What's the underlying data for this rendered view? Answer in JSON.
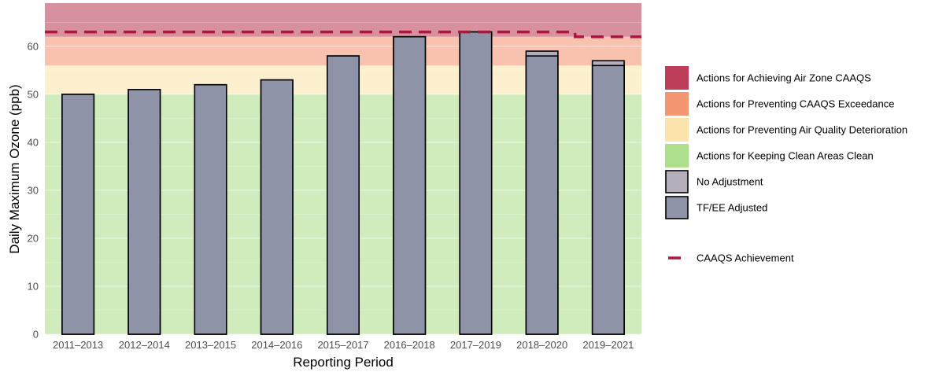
{
  "chart_data": {
    "type": "bar",
    "title": "",
    "xlabel": "Reporting Period",
    "ylabel": "Daily Maximum Ozone (ppb)",
    "ylim": [
      0,
      69
    ],
    "yticks": [
      0,
      10,
      20,
      30,
      40,
      50,
      60
    ],
    "grid": true,
    "legend_position": "right",
    "categories": [
      "2011–2013",
      "2012–2014",
      "2013–2015",
      "2014–2016",
      "2015–2017",
      "2016–2018",
      "2017–2019",
      "2018–2020",
      "2019–2021"
    ],
    "series": [
      {
        "name": "No Adjustment",
        "color": "#b3aeb8",
        "values": [
          50,
          51,
          52,
          53,
          58,
          62,
          63,
          59,
          57
        ]
      },
      {
        "name": "TF/EE Adjusted",
        "color": "#8f93a8",
        "values": [
          50,
          51,
          52,
          53,
          58,
          62,
          63,
          58,
          56
        ]
      }
    ],
    "management_levels": [
      {
        "name": "Actions for Achieving Air Zone CAAQS",
        "color": "#b8344f",
        "from": 62,
        "to": 69
      },
      {
        "name": "Actions for Preventing CAAQS Exceedance",
        "color": "#f4906b",
        "from": 56,
        "to": 62
      },
      {
        "name": "Actions for Preventing Air Quality Deterioration",
        "color": "#fbe3a7",
        "from": 50,
        "to": 56
      },
      {
        "name": "Actions for Keeping Clean Areas Clean",
        "color": "#a9dd87",
        "from": 0,
        "to": 50
      }
    ],
    "caaqs_line": {
      "name": "CAAQS Achievement",
      "color": "#b5123f",
      "steps": [
        {
          "from": "2011–2013",
          "to": "2018–2020",
          "value": 63
        },
        {
          "from": "2019–2021",
          "to": "2019–2021",
          "value": 62
        }
      ]
    }
  }
}
